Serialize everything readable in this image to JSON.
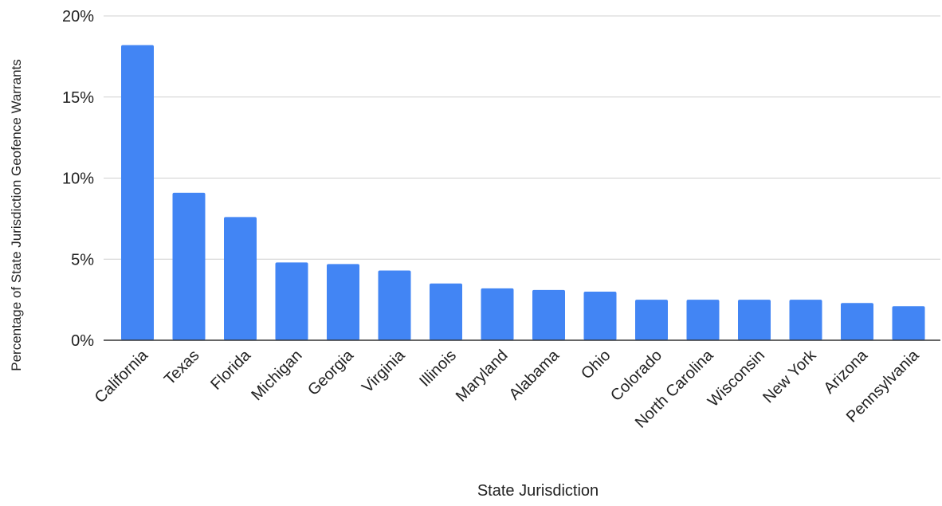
{
  "chart_data": {
    "type": "bar",
    "title": "",
    "xlabel": "State Jurisdiction",
    "ylabel": "Percentage of State Jurisdiction Geofence Warrants",
    "ylim": [
      0,
      20
    ],
    "yticks": [
      "0%",
      "5%",
      "10%",
      "15%",
      "20%"
    ],
    "grid": true,
    "bar_color": "#4285F4",
    "categories": [
      "California",
      "Texas",
      "Florida",
      "Michigan",
      "Georgia",
      "Virginia",
      "Illinois",
      "Maryland",
      "Alabama",
      "Ohio",
      "Colorado",
      "North Carolina",
      "Wisconsin",
      "New York",
      "Arizona",
      "Pennsylvania"
    ],
    "values": [
      18.2,
      9.1,
      7.6,
      4.8,
      4.7,
      4.3,
      3.5,
      3.2,
      3.1,
      3.0,
      2.5,
      2.5,
      2.5,
      2.5,
      2.3,
      2.1
    ]
  }
}
